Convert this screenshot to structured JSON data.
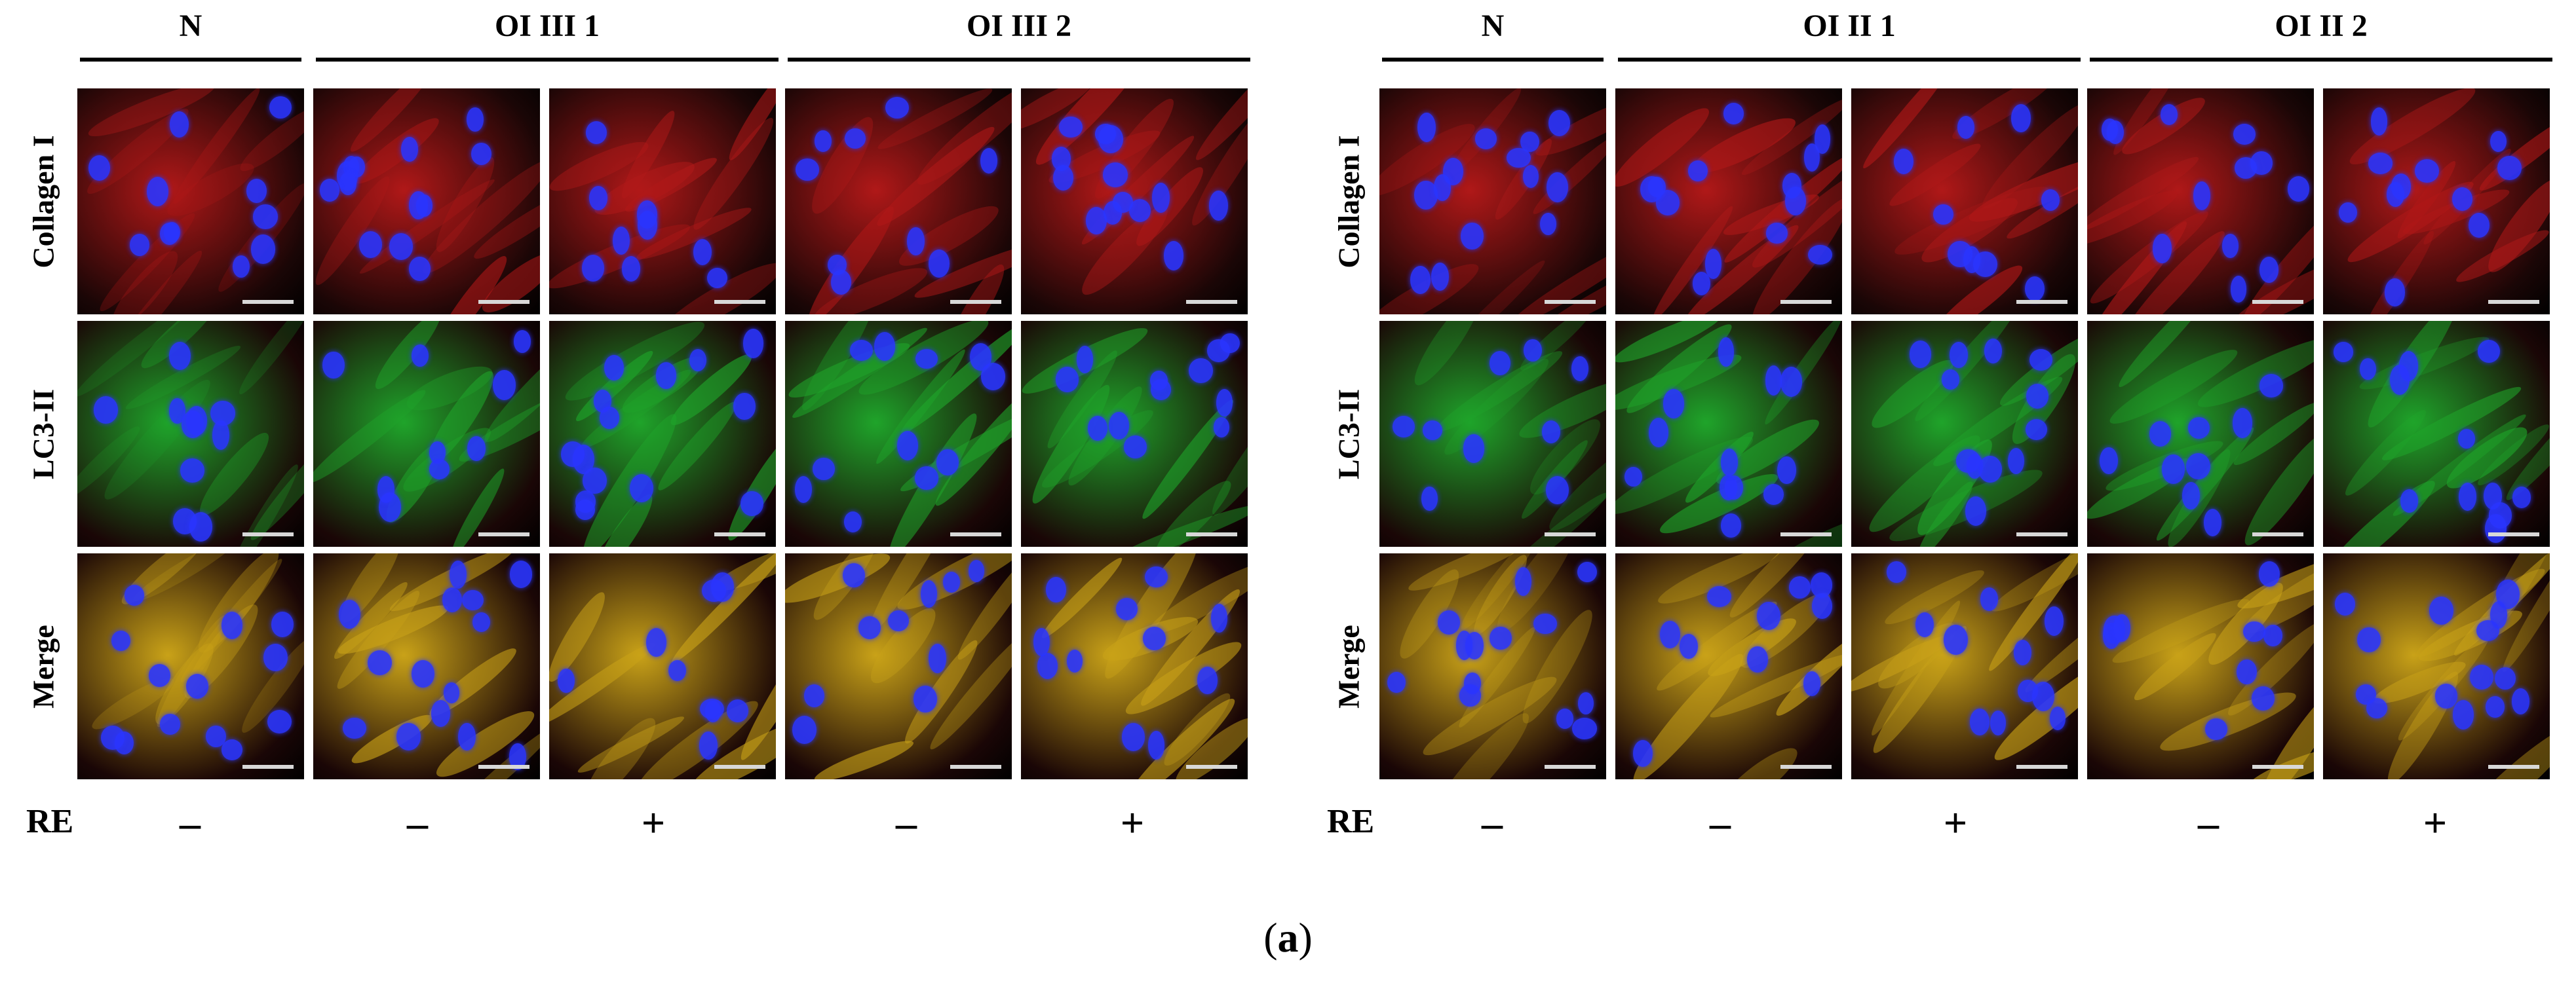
{
  "panels": [
    {
      "groups": [
        "N",
        "OI III 1",
        "OI III 2"
      ],
      "rows": [
        "Collagen I",
        "LC3-II",
        "Merge"
      ],
      "re_label": "RE",
      "treatments": [
        "–",
        "–",
        "+",
        "–",
        "+"
      ]
    },
    {
      "groups": [
        "N",
        "OI II 1",
        "OI II 2"
      ],
      "rows": [
        "Collagen I",
        "LC3-II",
        "Merge"
      ],
      "re_label": "RE",
      "treatments": [
        "–",
        "–",
        "+",
        "–",
        "+"
      ]
    }
  ],
  "caption": {
    "open": "(",
    "letter": "a",
    "close": ")"
  },
  "colors": {
    "collagen": "#b01818",
    "lc3": "#1fa42a",
    "merge": "#c9a218",
    "nuclei": "#2a35ff",
    "background": "#000000"
  }
}
